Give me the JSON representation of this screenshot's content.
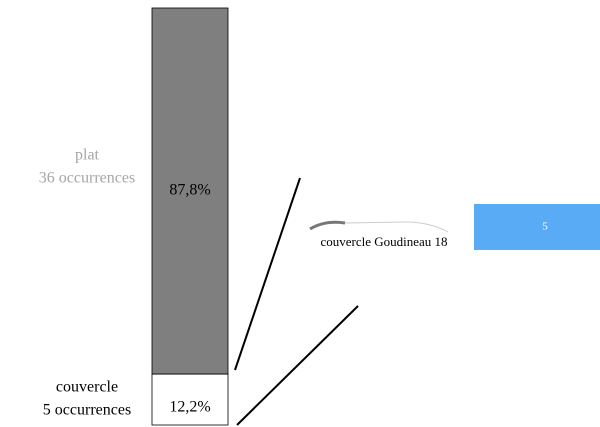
{
  "chart_data": {
    "type": "bar-of-bar",
    "segments": [
      {
        "name": "plat",
        "count_label": "36 occurrences",
        "value": 87.8,
        "value_label": "87,8%",
        "color": "#7f7f7f",
        "name_color": "#a6a6a6"
      },
      {
        "name": "couvercle",
        "count_label": "5 occurrences",
        "value": 12.2,
        "value_label": "12,2%",
        "color": "#ffffff",
        "name_color": "#000000"
      }
    ],
    "detail": {
      "categories": [
        "couvercle Goudineau 18"
      ],
      "values": [
        5
      ],
      "color": "#5aabf5"
    }
  }
}
